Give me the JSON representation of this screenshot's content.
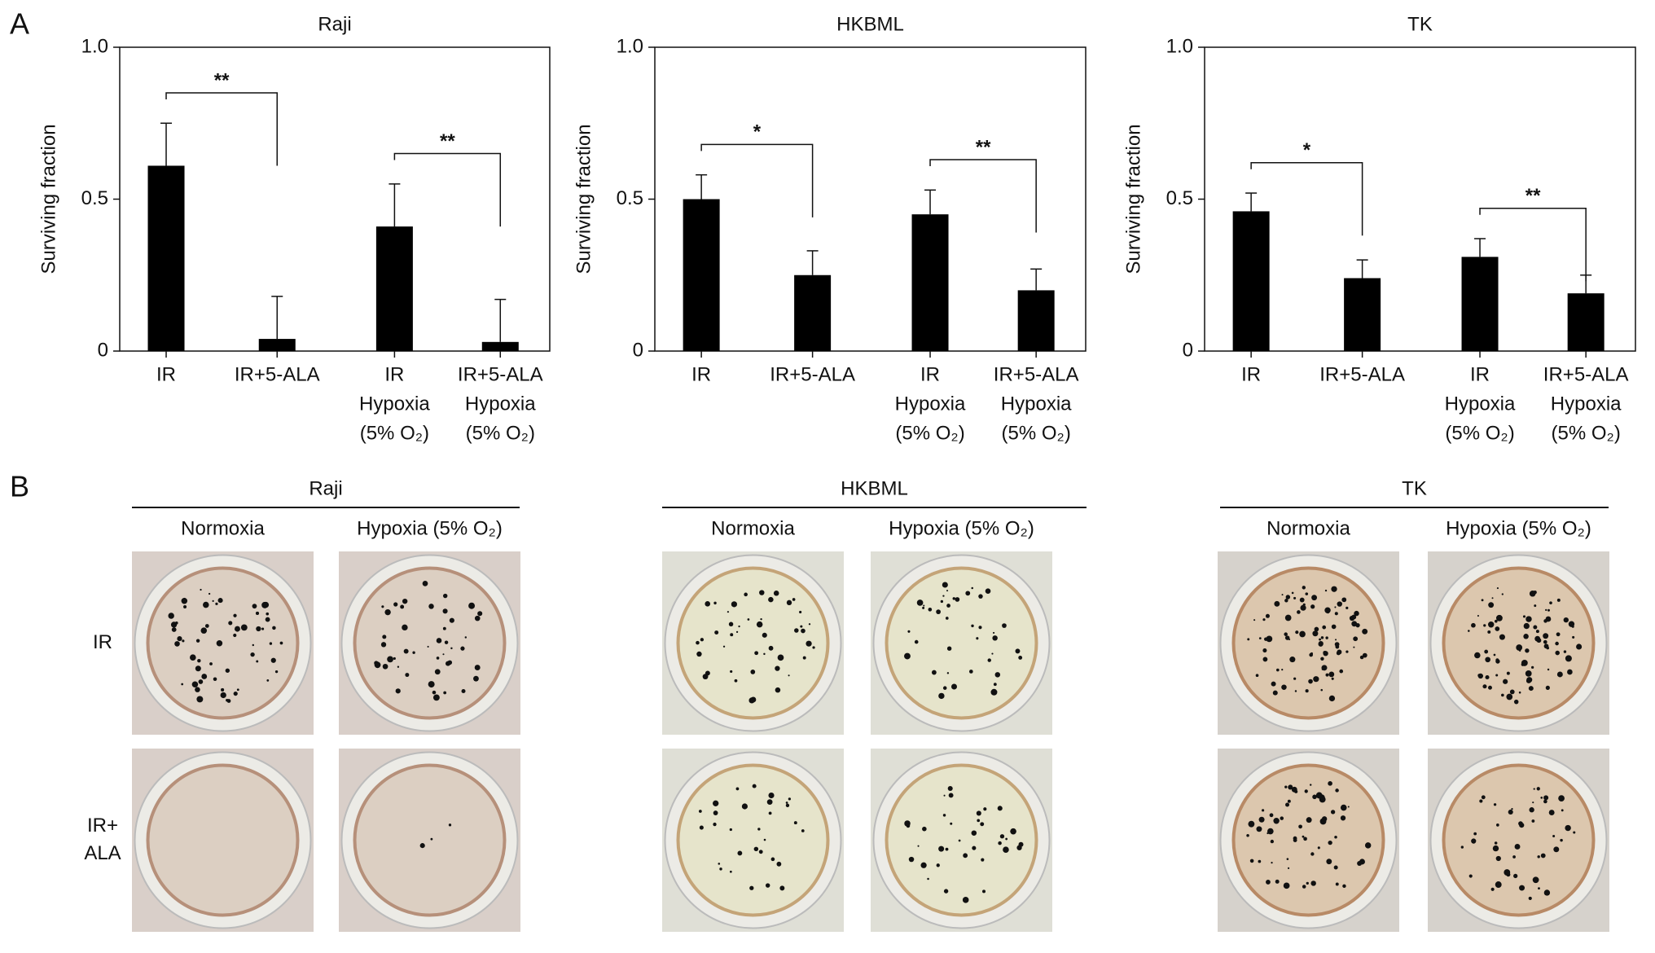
{
  "panel_a_label": "A",
  "chart_data": [
    {
      "type": "bar",
      "title": "Raji",
      "y_label": "Surviving fraction",
      "categories": [
        [
          "IR"
        ],
        [
          "IR+5-ALA"
        ],
        [
          "IR",
          "Hypoxia",
          "(5% O₂)"
        ],
        [
          "IR+5-ALA",
          "Hypoxia",
          "(5% O₂)"
        ]
      ],
      "values": [
        0.61,
        0.04,
        0.41,
        0.03
      ],
      "errors": [
        0.14,
        0.14,
        0.14,
        0.14
      ],
      "color": "#000000",
      "ylim": [
        0,
        1
      ],
      "yticks": [
        0,
        0.5,
        {
          "value": 1,
          "label": "1.0"
        }
      ],
      "comparisons": [
        {
          "pair": [
            0,
            1
          ],
          "label": "**"
        },
        {
          "pair": [
            2,
            3
          ],
          "label": "**"
        }
      ]
    },
    {
      "type": "bar",
      "title": "HKBML",
      "y_label": "Surviving fraction",
      "categories": [
        [
          "IR"
        ],
        [
          "IR+5-ALA"
        ],
        [
          "IR",
          "Hypoxia",
          "(5% O₂)"
        ],
        [
          "IR+5-ALA",
          "Hypoxia",
          "(5% O₂)"
        ]
      ],
      "values": [
        0.5,
        0.25,
        0.45,
        0.2
      ],
      "errors": [
        0.08,
        0.08,
        0.08,
        0.07
      ],
      "color": "#000000",
      "ylim": [
        0,
        1
      ],
      "yticks": [
        0,
        0.5,
        {
          "value": 1,
          "label": "1.0"
        }
      ],
      "comparisons": [
        {
          "pair": [
            0,
            1
          ],
          "label": "*"
        },
        {
          "pair": [
            2,
            3
          ],
          "label": "**"
        }
      ]
    },
    {
      "type": "bar",
      "title": "TK",
      "y_label": "Surviving fraction",
      "categories": [
        [
          "IR"
        ],
        [
          "IR+5-ALA"
        ],
        [
          "IR",
          "Hypoxia",
          "(5% O₂)"
        ],
        [
          "IR+5-ALA",
          "Hypoxia",
          "(5% O₂)"
        ]
      ],
      "values": [
        0.46,
        0.24,
        0.31,
        0.19
      ],
      "errors": [
        0.06,
        0.06,
        0.06,
        0.06
      ],
      "color": "#000000",
      "ylim": [
        0,
        1
      ],
      "yticks": [
        0,
        0.5,
        {
          "value": 1,
          "label": "1.0"
        }
      ],
      "comparisons": [
        {
          "pair": [
            0,
            1
          ],
          "label": "*"
        },
        {
          "pair": [
            2,
            3
          ],
          "label": "**"
        }
      ]
    }
  ],
  "panel_b": {
    "label": "B",
    "rows": [
      [
        "IR"
      ],
      [
        "IR+",
        "ALA"
      ]
    ],
    "groups": [
      {
        "title": "Raji",
        "columns": [
          "Normoxia",
          "Hypoxia (5% O₂)"
        ]
      },
      {
        "title": "HKBML",
        "columns": [
          "Normoxia",
          "Hypoxia (5% O₂)"
        ]
      },
      {
        "title": "TK",
        "columns": [
          "Normoxia",
          "Hypoxia (5% O₂)"
        ]
      }
    ]
  }
}
